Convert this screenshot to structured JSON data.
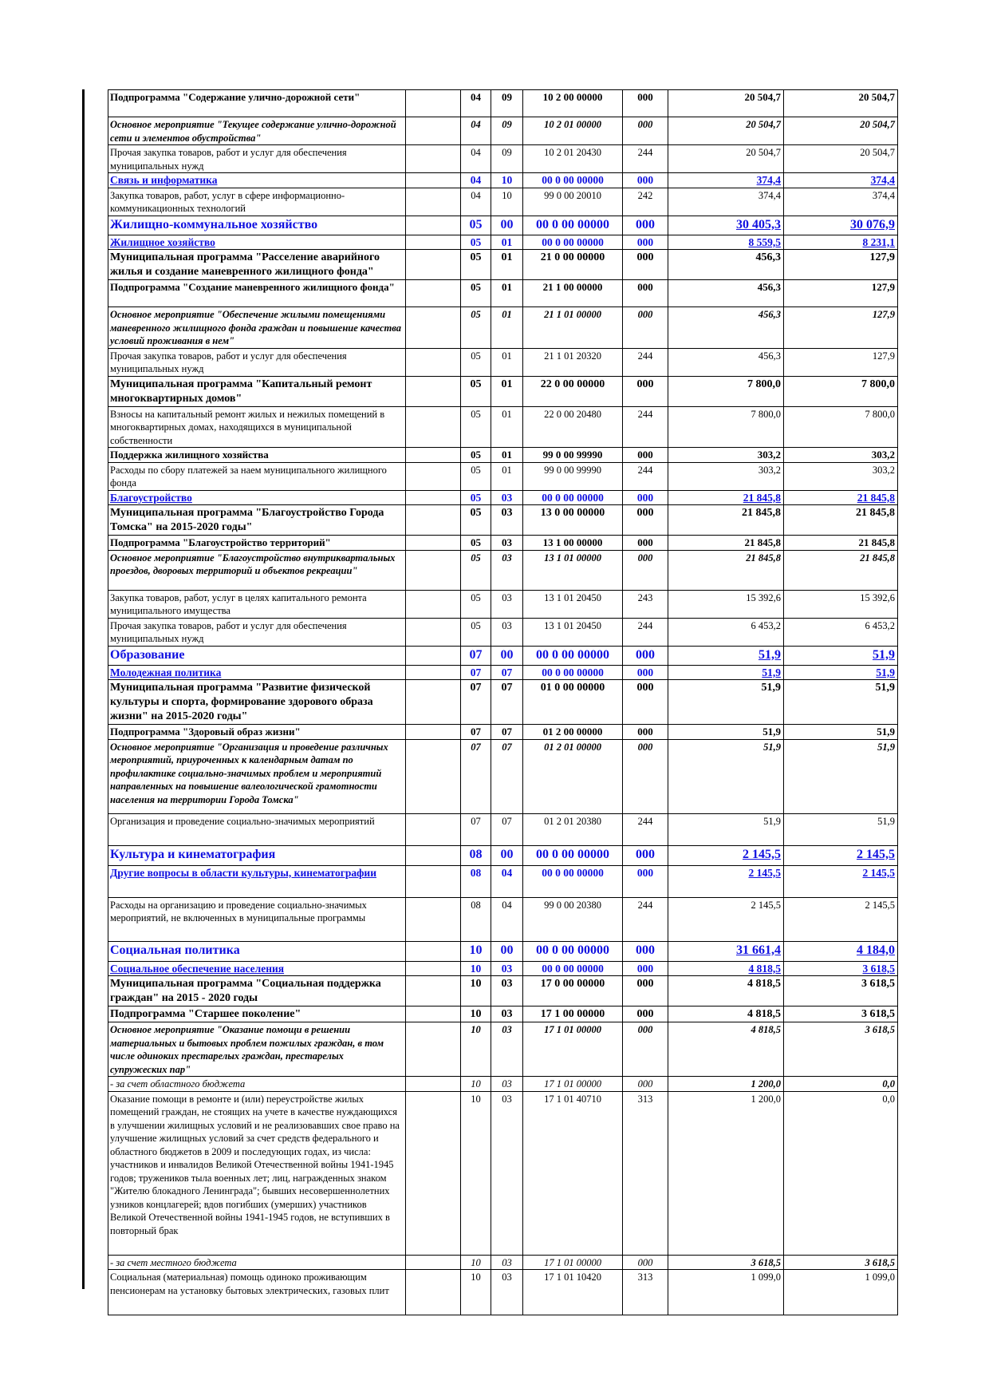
{
  "rows": [
    {
      "style": "bold",
      "name": "Подпрограмма \"Содержание улично-дорожной сети\"",
      "rz": "04",
      "pr": "09",
      "csr": "10 2 00 00000",
      "vr": "000",
      "v1": "20 504,7",
      "v2": "20 504,7"
    },
    {
      "style": "bi",
      "name": " Основное мероприятие \"Текущее содержание улично-дорожной сети и элементов обустройства\"",
      "rz": "04",
      "pr": "09",
      "csr": "10 2 01 00000",
      "vr": "000",
      "v1": "20 504,7",
      "v2": "20 504,7"
    },
    {
      "style": "normal",
      "name": "   Прочая закупка товаров, работ и услуг для обеспечения муниципальных нужд",
      "rz": "04",
      "pr": "09",
      "csr": "10 2 01 20430",
      "vr": "244",
      "v1": "20 504,7",
      "v2": "20 504,7"
    },
    {
      "style": "blue",
      "name": "Связь и информатика",
      "rz": "04",
      "pr": "10",
      "csr": "00 0 00 00000",
      "vr": "000",
      "v1": "374,4",
      "v2": "374,4"
    },
    {
      "style": "normal",
      "name": "   Закупка товаров, работ, услуг в сфере информационно-коммуникационных технологий",
      "rz": "04",
      "pr": "10",
      "csr": "99 0 00 20010",
      "vr": "242",
      "v1": "374,4",
      "v2": "374,4"
    },
    {
      "style": "bluebig",
      "name": "Жилищно-коммунальное хозяйство",
      "rz": "05",
      "pr": "00",
      "csr": "00 0 00 00000",
      "vr": "000",
      "v1": "30 405,3",
      "v2": "30 076,9"
    },
    {
      "style": "blue",
      "name": "Жилищное хозяйство",
      "rz": "05",
      "pr": "01",
      "csr": "00 0 00 00000",
      "vr": "000",
      "v1": "8 559,5",
      "v2": "8 231,1"
    },
    {
      "style": "boldbig",
      "name": "Муниципальная программа \"Расселение аварийного жилья и создание маневренного жилищного фонда\"",
      "rz": "05",
      "pr": "01",
      "csr": "21 0 00 00000",
      "vr": "000",
      "v1": "456,3",
      "v2": "127,9"
    },
    {
      "style": "bold",
      "name": "Подпрограмма \"Создание маневренного жилищного фонда\"",
      "rz": "05",
      "pr": "01",
      "csr": "21 1 00 00000",
      "vr": "000",
      "v1": "456,3",
      "v2": "127,9"
    },
    {
      "style": "bi",
      "name": "Основное мероприятие \"Обеспечение жилыми помещениями маневренного жилищного фонда граждан и повышение качества условий проживания в нем\"",
      "rz": "05",
      "pr": "01",
      "csr": "21 1 01 00000",
      "vr": "000",
      "v1": "456,3",
      "v2": "127,9"
    },
    {
      "style": "normal",
      "name": "Прочая закупка товаров, работ и услуг для обеспечения муниципальных нужд",
      "rz": "05",
      "pr": "01",
      "csr": "21 1 01 20320",
      "vr": "244",
      "v1": "456,3",
      "v2": "127,9"
    },
    {
      "style": "boldbig",
      "name": "Муниципальная программа \"Капитальный ремонт многоквартирных домов\"",
      "rz": "05",
      "pr": "01",
      "csr": "22 0 00 00000",
      "vr": "000",
      "v1": "7 800,0",
      "v2": "7 800,0"
    },
    {
      "style": "normal",
      "name": "  Взносы на капитальный ремонт жилых и нежилых помещений в многоквартирных домах, находящихся в муниципальной собственности",
      "rz": "05",
      "pr": "01",
      "csr": "22 0 00 20480",
      "vr": "244",
      "v1": "7 800,0",
      "v2": "7 800,0"
    },
    {
      "style": "bold",
      "name": "Поддержка жилищного хозяйства",
      "rz": "05",
      "pr": "01",
      "csr": "99 0 00 99990",
      "vr": "000",
      "v1": "303,2",
      "v2": "303,2"
    },
    {
      "style": "normal",
      "name": "Расходы по сбору платежей за наем муниципального жилищного фонда",
      "rz": "05",
      "pr": "01",
      "csr": "99 0 00 99990",
      "vr": "244",
      "v1": "303,2",
      "v2": "303,2"
    },
    {
      "style": "blue",
      "name": "Благоустройство",
      "rz": "05",
      "pr": "03",
      "csr": "00 0 00 00000",
      "vr": "000",
      "v1": "21 845,8",
      "v2": "21 845,8"
    },
    {
      "style": "boldbig",
      "name": "Муниципальная программа \"Благоустройство Города Томска\" на 2015-2020 годы\"",
      "rz": "05",
      "pr": "03",
      "csr": "13 0 00 00000",
      "vr": "000",
      "v1": "21 845,8",
      "v2": "21 845,8"
    },
    {
      "style": "bold",
      "name": "Подпрограмма \"Благоустройство территорий\"",
      "rz": "05",
      "pr": "03",
      "csr": "13 1 00 00000",
      "vr": "000",
      "v1": "21 845,8",
      "v2": "21 845,8"
    },
    {
      "style": "bi",
      "name": " Основное мероприятие \"Благоустройство внутриквартальных проездов, дворовых территорий и объектов рекреации\"",
      "rz": "05",
      "pr": "03",
      "csr": "13 1 01 00000",
      "vr": "000",
      "v1": "21 845,8",
      "v2": "21 845,8"
    },
    {
      "style": "normal",
      "name": "   Закупка товаров, работ, услуг в целях капитального ремонта муниципального имущества",
      "rz": "05",
      "pr": "03",
      "csr": "13 1 01 20450",
      "vr": "243",
      "v1": "15 392,6",
      "v2": "15 392,6"
    },
    {
      "style": "normal",
      "name": "   Прочая закупка товаров, работ и услуг для обеспечения муниципальных нужд",
      "rz": "05",
      "pr": "03",
      "csr": "13 1 01 20450",
      "vr": "244",
      "v1": "6 453,2",
      "v2": "6 453,2"
    },
    {
      "style": "bluebig",
      "name": "Образование",
      "rz": "07",
      "pr": "00",
      "csr": "00 0 00 00000",
      "vr": "000",
      "v1": "51,9",
      "v2": "51,9"
    },
    {
      "style": "blue",
      "name": "Молодежная политика",
      "rz": "07",
      "pr": "07",
      "csr": "00 0 00 00000",
      "vr": "000",
      "v1": "51,9",
      "v2": "51,9"
    },
    {
      "style": "boldbig",
      "name": "Муниципальная программа \"Развитие физической культуры и спорта, формирование здорового образа жизни\" на 2015-2020 годы\"",
      "rz": "07",
      "pr": "07",
      "csr": "01 0 00 00000",
      "vr": "000",
      "v1": "51,9",
      "v2": "51,9"
    },
    {
      "style": "bold",
      "name": "Подпрограмма \"Здоровый образ жизни\"",
      "rz": "07",
      "pr": "07",
      "csr": "01 2 00 00000",
      "vr": "000",
      "v1": "51,9",
      "v2": "51,9"
    },
    {
      "style": "bi",
      "name": " Основное мероприятие \"Организация и проведение различных мероприятий, приуроченных к календарным датам по профилактике социально-значимых проблем и мероприятий направленных на повышение валеологической грамотности населения на территории Города Томска\"",
      "rz": "07",
      "pr": "07",
      "csr": "01 2 01 00000",
      "vr": "000",
      "v1": "51,9",
      "v2": "51,9"
    },
    {
      "style": "normal",
      "name": "  Организация и проведение социально-значимых мероприятий",
      "rz": "07",
      "pr": "07",
      "csr": "01 2 01 20380",
      "vr": "244",
      "v1": "51,9",
      "v2": "51,9"
    },
    {
      "style": "bluebig",
      "name": "Культура и кинематография",
      "rz": "08",
      "pr": "00",
      "csr": "00 0 00 00000",
      "vr": "000",
      "v1": "2 145,5",
      "v2": "2 145,5"
    },
    {
      "style": "blue",
      "name": "Другие вопросы в области культуры, кинематографии",
      "rz": "08",
      "pr": "04",
      "csr": "00 0 00 00000",
      "vr": "000",
      "v1": "2 145,5",
      "v2": "2 145,5"
    },
    {
      "style": "normal",
      "name": "  Расходы на организацию и проведение социально-значимых мероприятий, не включенных в муниципальные программы",
      "rz": "08",
      "pr": "04",
      "csr": "99 0 00 20380",
      "vr": "244",
      "v1": "2 145,5",
      "v2": "2 145,5"
    },
    {
      "style": "bluebig",
      "name": "Социальная политика",
      "rz": "10",
      "pr": "00",
      "csr": "00 0 00 00000",
      "vr": "000",
      "v1": "31 661,4",
      "v2": "4 184,0"
    },
    {
      "style": "blue",
      "name": "Социальное обеспечение населения",
      "rz": "10",
      "pr": "03",
      "csr": "00 0 00 00000",
      "vr": "000",
      "v1": "4 818,5",
      "v2": "3 618,5"
    },
    {
      "style": "boldbig",
      "name": "Муниципальная программа \"Социальная поддержка граждан\" на 2015 - 2020 годы",
      "rz": "10",
      "pr": "03",
      "csr": "17 0 00 00000",
      "vr": "000",
      "v1": "4 818,5",
      "v2": "3 618,5"
    },
    {
      "style": "boldbig",
      "name": "Подпрограмма \"Старшее поколение\"",
      "rz": "10",
      "pr": "03",
      "csr": "17 1 00 00000",
      "vr": "000",
      "v1": "4 818,5",
      "v2": "3 618,5"
    },
    {
      "style": "bi",
      "name": " Основное мероприятие \"Оказание помощи в решении материальных и бытовых проблем пожилых граждан, в том числе одиноких престарелых граждан, престарелых супружеских пар\"",
      "rz": "10",
      "pr": "03",
      "csr": "17 1 01 00000",
      "vr": "000",
      "v1": "4 818,5",
      "v2": "3 618,5"
    },
    {
      "style": "it",
      "name": "  - за счет областного бюджета",
      "rz": "10",
      "pr": "03",
      "csr": "17 1 01 00000",
      "vr": "000",
      "v1": "1 200,0",
      "v2": "0,0"
    },
    {
      "style": "normal",
      "name": "  Оказание помощи в ремонте и (или) переустройстве жилых помещений граждан, не стоящих на учете в качестве нуждающихся в улучшении жилищных условий и не реализовавших свое право на улучшение жилищных условий за счет средств федерального и областного бюджетов в 2009 и последующих годах, из числа: участников и инвалидов Великой Отечественной войны 1941-1945 годов; тружеников тыла военных лет; лиц, награжденных знаком \"Жителю блокадного Ленинграда\"; бывших несовершеннолетних узников концлагерей; вдов погибших (умерших) участников Великой Отечественной войны 1941-1945 годов, не вступивших в повторный брак",
      "rz": "10",
      "pr": "03",
      "csr": "17 1 01 40710",
      "vr": "313",
      "v1": "1 200,0",
      "v2": "0,0"
    },
    {
      "style": "it",
      "name": "  - за счет местного бюджета",
      "rz": "10",
      "pr": "03",
      "csr": "17 1 01 00000",
      "vr": "000",
      "v1": "3 618,5",
      "v2": "3 618,5"
    },
    {
      "style": "normal",
      "name": " Социальная (материальная) помощь одиноко проживающим пенсионерам на установку бытовых электрических, газовых плит",
      "rz": "10",
      "pr": "03",
      "csr": "17 1 01 10420",
      "vr": "313",
      "v1": "1 099,0",
      "v2": "1 099,0"
    }
  ]
}
